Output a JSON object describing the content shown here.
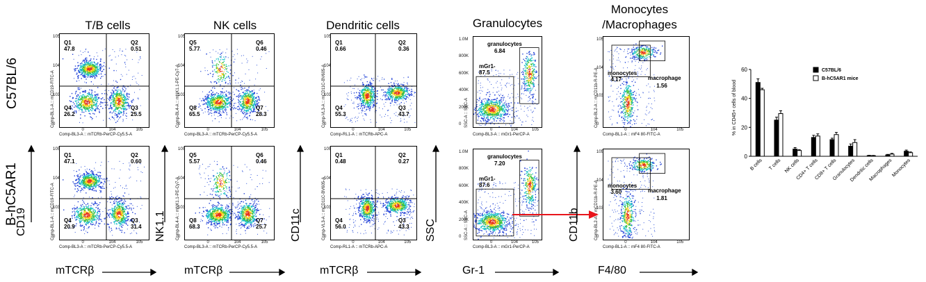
{
  "columns": [
    {
      "title": "T/B cells",
      "x_marker": "mTCRβ",
      "y_marker": "CD19"
    },
    {
      "title": "NK cells",
      "x_marker": "mTCRβ",
      "y_marker": "NK1.1"
    },
    {
      "title": "Dendritic cells",
      "x_marker": "mTCRβ",
      "y_marker": "CD11c"
    },
    {
      "title": "Granulocytes",
      "x_marker": "Gr-1",
      "y_marker": "SSC"
    },
    {
      "title_line1": "Monocytes",
      "title_line2": "/Macrophages",
      "x_marker": "F4/80",
      "y_marker": "CD11b"
    }
  ],
  "rows": [
    {
      "label": "C57BL/6"
    },
    {
      "label": "B-hC5AR1"
    }
  ],
  "plots": [
    {
      "id": "tb-wt",
      "xaxis": "Comp-BL3-A :: mTCRb-PerCP-Cy5.5-A",
      "yaxis": "Comp-BL1-A :: mCD19-FITC-A",
      "gates": [
        {
          "name": "Q1",
          "value": "47.8"
        },
        {
          "name": "Q2",
          "value": "0.51"
        },
        {
          "name": "Q4",
          "value": "26.2"
        },
        {
          "name": "Q3",
          "value": "25.5"
        }
      ]
    },
    {
      "id": "nk-wt",
      "xaxis": "Comp-BL3-A :: mTCRb-PerCP-Cy5.5-A",
      "yaxis": "Comp-BL4-A :: mNK1.1-PE-Cy7-A",
      "gates": [
        {
          "name": "Q5",
          "value": "5.77"
        },
        {
          "name": "Q6",
          "value": "0.46"
        },
        {
          "name": "Q8",
          "value": "65.5"
        },
        {
          "name": "Q7",
          "value": "28.3"
        }
      ]
    },
    {
      "id": "dc-wt",
      "xaxis": "Comp-RL1-A :: mTCRb-APC-A",
      "yaxis": "Comp-VL3-A :: mCD11C-BV605-A",
      "gates": [
        {
          "name": "Q1",
          "value": "0.66"
        },
        {
          "name": "Q2",
          "value": "0.36"
        },
        {
          "name": "Q4",
          "value": "55.3"
        },
        {
          "name": "Q3",
          "value": "43.7"
        }
      ]
    },
    {
      "id": "gr-wt",
      "xaxis": "Comp-BL3-A :: mGr1-PerCP-A",
      "yaxis": "SSC-A :: SSC-A",
      "gates": [
        {
          "name": "granulocytes",
          "value": "6.84"
        },
        {
          "name": "mGr1-",
          "value": "87.5"
        }
      ]
    },
    {
      "id": "mo-wt",
      "xaxis": "Comp-BL1-A :: mF4 80-FITC-A",
      "yaxis": "Comp-BL2-A :: mCD11b-R-PE-A",
      "gates": [
        {
          "name": "monocytes",
          "value": "4.17"
        },
        {
          "name": "macrophage",
          "value": "1.56"
        }
      ]
    },
    {
      "id": "tb-ko",
      "xaxis": "Comp-BL3-A :: mTCRb-PerCP-Cy5.5-A",
      "yaxis": "Comp-BL1-A :: mCD19-FITC-A",
      "gates": [
        {
          "name": "Q1",
          "value": "47.1"
        },
        {
          "name": "Q2",
          "value": "0.60"
        },
        {
          "name": "Q4",
          "value": "20.9"
        },
        {
          "name": "Q3",
          "value": "31.4"
        }
      ]
    },
    {
      "id": "nk-ko",
      "xaxis": "Comp-BL3-A :: mTCRb-PerCP-Cy5.5-A",
      "yaxis": "Comp-BL4-A :: mNK1.1-PE-Cy7-A",
      "gates": [
        {
          "name": "Q5",
          "value": "5.57"
        },
        {
          "name": "Q6",
          "value": "0.46"
        },
        {
          "name": "Q8",
          "value": "68.3"
        },
        {
          "name": "Q7",
          "value": "25.7"
        }
      ]
    },
    {
      "id": "dc-ko",
      "xaxis": "Comp-RL1-A :: mTCRb-APC-A",
      "yaxis": "Comp-VL3-A :: mCD11C-BV605-A",
      "gates": [
        {
          "name": "Q1",
          "value": "0.48"
        },
        {
          "name": "Q2",
          "value": "0.27"
        },
        {
          "name": "Q4",
          "value": "56.0"
        },
        {
          "name": "Q3",
          "value": "43.3"
        }
      ]
    },
    {
      "id": "gr-ko",
      "xaxis": "Comp-BL3-A :: mGr1-PerCP-A",
      "yaxis": "SSC-A :: SSC-A",
      "gates": [
        {
          "name": "granulocytes",
          "value": "7.20"
        },
        {
          "name": "mGr1-",
          "value": "87.6"
        }
      ]
    },
    {
      "id": "mo-ko",
      "xaxis": "Comp-BL1-A :: mF4 80-FITC-A",
      "yaxis": "Comp-BL2-A :: mCD11b-R-PE-A",
      "gates": [
        {
          "name": "monocytes",
          "value": "3.60"
        },
        {
          "name": "macrophage",
          "value": "1.81"
        }
      ]
    }
  ],
  "log_ticks": {
    "y": [
      "10^5",
      "10^4",
      "10^3",
      "0"
    ],
    "x": [
      "0",
      "10^4",
      "10^5"
    ]
  },
  "ssc_ticks": [
    "1.0M",
    "800K",
    "600K",
    "400K",
    "200K",
    "0"
  ],
  "chart_data": {
    "type": "bar",
    "ylabel": "% in CD45+ cells of blood",
    "ylim": [
      0,
      60
    ],
    "yticks": [
      0,
      20,
      40,
      60
    ],
    "categories": [
      "B cells",
      "T cells",
      "NK cells",
      "CD4+ T cells",
      "CD8+ T cells",
      "Granulocytes",
      "Dendritic cells",
      "Macrophages",
      "Monocytes"
    ],
    "series": [
      {
        "name": "C57BL/6",
        "color": "#000000",
        "values": [
          51,
          25,
          5,
          13,
          11.5,
          7,
          0.5,
          1,
          3.5
        ],
        "errors": [
          2.5,
          2,
          1,
          1.5,
          1,
          1.5,
          0.2,
          0.3,
          0.8
        ]
      },
      {
        "name": "B-hC5AR1 mice",
        "color": "#ffffff",
        "values": [
          46,
          29.5,
          4,
          14,
          15,
          9.5,
          0.4,
          1.5,
          2.5
        ],
        "errors": [
          1,
          2,
          0.5,
          1.5,
          1.5,
          2,
          0.2,
          0.5,
          0.5
        ]
      }
    ],
    "legend": "top-right"
  }
}
